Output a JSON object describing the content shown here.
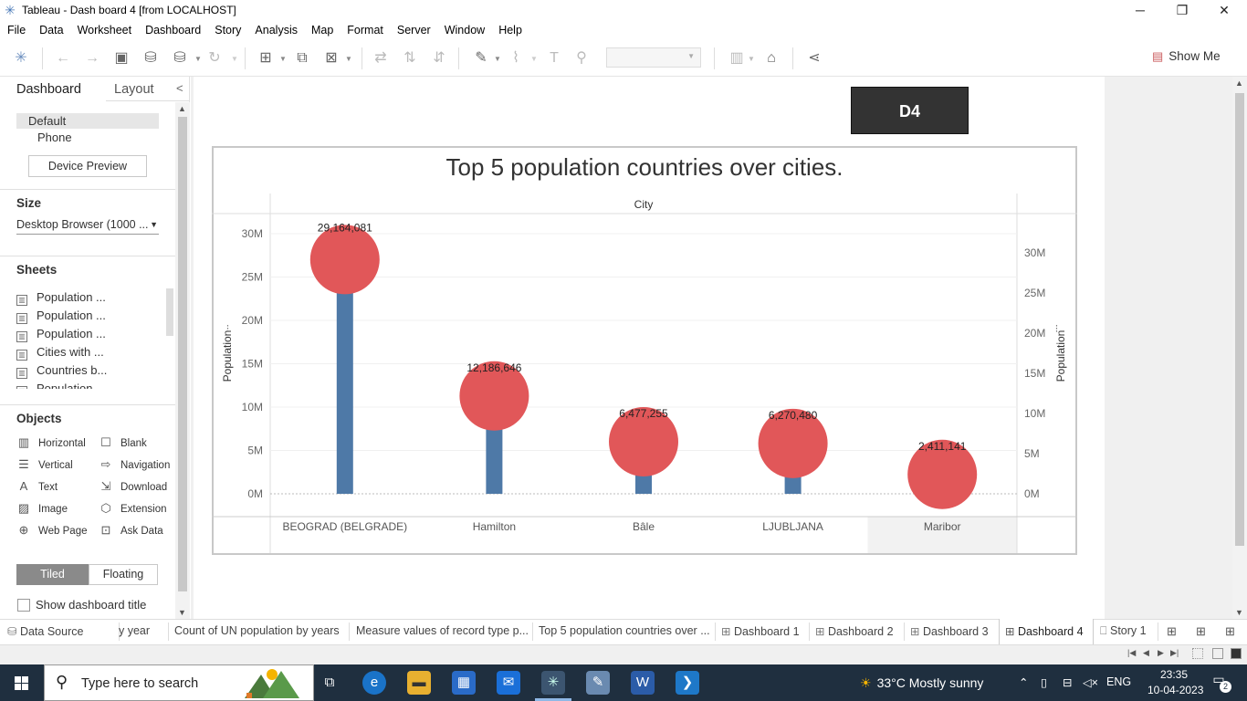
{
  "window": {
    "title": "Tableau - Dash board 4 [from LOCALHOST]",
    "minimize": "─",
    "restore": "❐",
    "close": "✕"
  },
  "menu": [
    "File",
    "Data",
    "Worksheet",
    "Dashboard",
    "Story",
    "Analysis",
    "Map",
    "Format",
    "Server",
    "Window",
    "Help"
  ],
  "toolbar": {
    "show_me": "Show Me"
  },
  "left_panel": {
    "tab_dashboard": "Dashboard",
    "tab_layout": "Layout",
    "collapse": "<",
    "device_default": "Default",
    "device_phone": "Phone",
    "device_preview": "Device Preview",
    "size_title": "Size",
    "size_value": "Desktop Browser (1000 ...",
    "sheets_title": "Sheets",
    "sheets": [
      "Population ...",
      "Population ...",
      "Population ...",
      "Cities with ...",
      "Countries b...",
      "Population ..."
    ],
    "objects_title": "Objects",
    "objects": [
      {
        "label": "Horizontal",
        "icon": "horizontal-layout-icon"
      },
      {
        "label": "Blank",
        "icon": "blank-icon"
      },
      {
        "label": "Vertical",
        "icon": "vertical-layout-icon"
      },
      {
        "label": "Navigation",
        "icon": "navigation-icon"
      },
      {
        "label": "Text",
        "icon": "text-icon"
      },
      {
        "label": "Download",
        "icon": "download-icon"
      },
      {
        "label": "Image",
        "icon": "image-icon"
      },
      {
        "label": "Extension",
        "icon": "extension-icon"
      },
      {
        "label": "Web Page",
        "icon": "globe-icon"
      },
      {
        "label": "Ask Data",
        "icon": "ask-data-icon"
      }
    ],
    "tiled": "Tiled",
    "floating": "Floating",
    "show_title": "Show dashboard title"
  },
  "dashboard": {
    "badge": "D4"
  },
  "chart_data": {
    "type": "bar",
    "title": "Top 5 population countries over cities.",
    "column_header": "City",
    "categories": [
      "BEOGRAD (BELGRADE)",
      "Hamilton",
      "Bâle",
      "LJUBLJANA",
      "Maribor"
    ],
    "values": [
      29164081,
      12186646,
      6477255,
      6270480,
      2411141
    ],
    "value_labels": [
      "29,164,081",
      "12,186,646",
      "6,477,255",
      "6,270,480",
      "2,411,141"
    ],
    "left_axis": {
      "label": "Population",
      "ticks": [
        "0M",
        "5M",
        "10M",
        "15M",
        "20M",
        "25M",
        "30M"
      ],
      "range": [
        0,
        30000000
      ]
    },
    "right_axis": {
      "label": "Population",
      "ticks": [
        "0M",
        "5M",
        "10M",
        "15M",
        "20M",
        "25M",
        "30M"
      ],
      "range": [
        0,
        30000000
      ]
    },
    "mark_style": "bar with circle (dual axis lollipop)",
    "bar_color": "#4e79a7",
    "circle_color": "#e15759",
    "highlighted_category": "Maribor"
  },
  "sheet_tabs": [
    {
      "label": "Data Source",
      "icon": "data-source-icon"
    },
    {
      "label": "y year"
    },
    {
      "label": "Count of UN population by years"
    },
    {
      "label": "Measure values of record type p..."
    },
    {
      "label": "Top 5 population countries over ..."
    },
    {
      "label": "Dashboard 1",
      "icon": "dashboard-icon"
    },
    {
      "label": "Dashboard 2",
      "icon": "dashboard-icon"
    },
    {
      "label": "Dashboard 3",
      "icon": "dashboard-icon"
    },
    {
      "label": "Dashboard 4",
      "icon": "dashboard-icon",
      "active": true
    },
    {
      "label": "Story 1",
      "icon": "story-icon"
    }
  ],
  "taskbar": {
    "search_placeholder": "Type here to search",
    "weather": "33°C  Mostly sunny",
    "language": "ENG",
    "time": "23:35",
    "date": "10-04-2023",
    "notifications": "2"
  }
}
